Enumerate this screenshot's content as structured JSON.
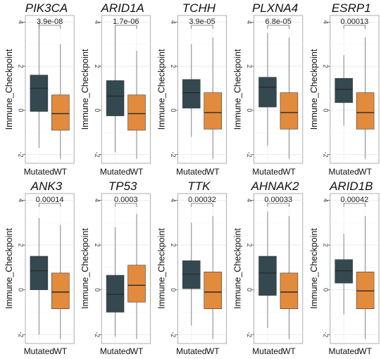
{
  "chart_data": {
    "type": "boxplot",
    "ylabel": "Immune_Checkpoint",
    "categories": [
      "Mutated",
      "WT"
    ],
    "ylim": [
      -2.4,
      4.3
    ],
    "yticks": [
      "-2",
      "0",
      "2",
      "4"
    ],
    "grid": true,
    "legend": "none",
    "colors": {
      "Mutated": "#34494f",
      "WT": "#e38b3c"
    },
    "panels": [
      {
        "gene": "PIK3CA",
        "pvalue": "3.9e-08",
        "mutated": {
          "whisker_low": -1.7,
          "q1": -0.05,
          "median": 1.0,
          "q3": 1.6,
          "whisker_high": 4.0
        },
        "wt": {
          "whisker_low": -2.2,
          "q1": -0.9,
          "median": -0.15,
          "q3": 0.7,
          "whisker_high": 3.0
        }
      },
      {
        "gene": "ARID1A",
        "pvalue": "1.7e-06",
        "mutated": {
          "whisker_low": -1.9,
          "q1": -0.25,
          "median": 0.65,
          "q3": 1.35,
          "whisker_high": 3.7
        },
        "wt": {
          "whisker_low": -2.2,
          "q1": -0.9,
          "median": -0.15,
          "q3": 0.7,
          "whisker_high": 2.7
        }
      },
      {
        "gene": "TCHH",
        "pvalue": "3.9e-05",
        "mutated": {
          "whisker_low": -1.2,
          "q1": 0.1,
          "median": 0.8,
          "q3": 1.4,
          "whisker_high": 3.0
        },
        "wt": {
          "whisker_low": -2.2,
          "q1": -0.85,
          "median": -0.1,
          "q3": 0.8,
          "whisker_high": 3.3
        }
      },
      {
        "gene": "PLXNA4",
        "pvalue": "6.8e-05",
        "mutated": {
          "whisker_low": -1.6,
          "q1": 0.15,
          "median": 1.05,
          "q3": 1.5,
          "whisker_high": 3.5
        },
        "wt": {
          "whisker_low": -2.2,
          "q1": -0.85,
          "median": -0.1,
          "q3": 0.8,
          "whisker_high": 3.3
        }
      },
      {
        "gene": "ESRP1",
        "pvalue": "0.00013",
        "mutated": {
          "whisker_low": -0.7,
          "q1": 0.35,
          "median": 0.95,
          "q3": 1.45,
          "whisker_high": 2.5
        },
        "wt": {
          "whisker_low": -2.2,
          "q1": -0.85,
          "median": -0.1,
          "q3": 0.8,
          "whisker_high": 3.3
        }
      },
      {
        "gene": "ANK3",
        "pvalue": "0.00014",
        "mutated": {
          "whisker_low": -2.0,
          "q1": 0.0,
          "median": 0.85,
          "q3": 1.5,
          "whisker_high": 3.2
        },
        "wt": {
          "whisker_low": -2.2,
          "q1": -0.85,
          "median": -0.1,
          "q3": 0.75,
          "whisker_high": 2.9
        }
      },
      {
        "gene": "TP53",
        "pvalue": "0.0003",
        "mutated": {
          "whisker_low": -2.1,
          "q1": -1.0,
          "median": -0.2,
          "q3": 0.65,
          "whisker_high": 2.8
        },
        "wt": {
          "whisker_low": -2.2,
          "q1": -0.55,
          "median": 0.2,
          "q3": 1.1,
          "whisker_high": 3.4
        }
      },
      {
        "gene": "TTK",
        "pvalue": "0.00032",
        "mutated": {
          "whisker_low": -1.6,
          "q1": 0.05,
          "median": 0.7,
          "q3": 1.3,
          "whisker_high": 3.0
        },
        "wt": {
          "whisker_low": -2.2,
          "q1": -0.85,
          "median": -0.1,
          "q3": 0.8,
          "whisker_high": 3.3
        }
      },
      {
        "gene": "AHNAK2",
        "pvalue": "0.00033",
        "mutated": {
          "whisker_low": -1.7,
          "q1": -0.25,
          "median": 0.75,
          "q3": 1.5,
          "whisker_high": 3.5
        },
        "wt": {
          "whisker_low": -2.2,
          "q1": -0.85,
          "median": -0.1,
          "q3": 0.75,
          "whisker_high": 3.3
        }
      },
      {
        "gene": "ARID1B",
        "pvalue": "0.00042",
        "mutated": {
          "whisker_low": -1.1,
          "q1": 0.3,
          "median": 0.85,
          "q3": 1.35,
          "whisker_high": 2.5
        },
        "wt": {
          "whisker_low": -2.2,
          "q1": -0.85,
          "median": -0.05,
          "q3": 0.8,
          "whisker_high": 3.3
        }
      }
    ]
  }
}
